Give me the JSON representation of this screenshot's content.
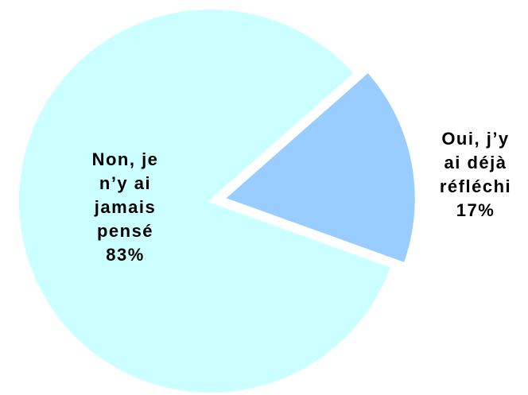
{
  "chart_data": {
    "type": "pie",
    "categories": [
      "Oui, j’y ai déjà réfléchi",
      "Non, je n’y ai jamais pensé"
    ],
    "values": [
      17,
      83
    ],
    "value_labels": [
      "17%",
      "83%"
    ],
    "colors": [
      "#99ccff",
      "#ccffff"
    ]
  }
}
